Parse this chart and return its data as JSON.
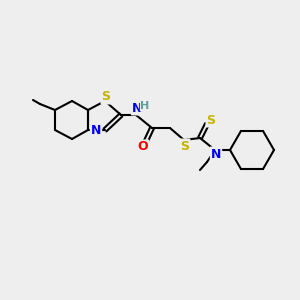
{
  "background_color": "#eeeeee",
  "bond_color": "#000000",
  "atom_colors": {
    "S": "#c8b400",
    "N": "#0000ff",
    "O": "#ff0000",
    "H": "#5f9ea0",
    "C": "#000000"
  },
  "figsize": [
    3.0,
    3.0
  ],
  "dpi": 100
}
